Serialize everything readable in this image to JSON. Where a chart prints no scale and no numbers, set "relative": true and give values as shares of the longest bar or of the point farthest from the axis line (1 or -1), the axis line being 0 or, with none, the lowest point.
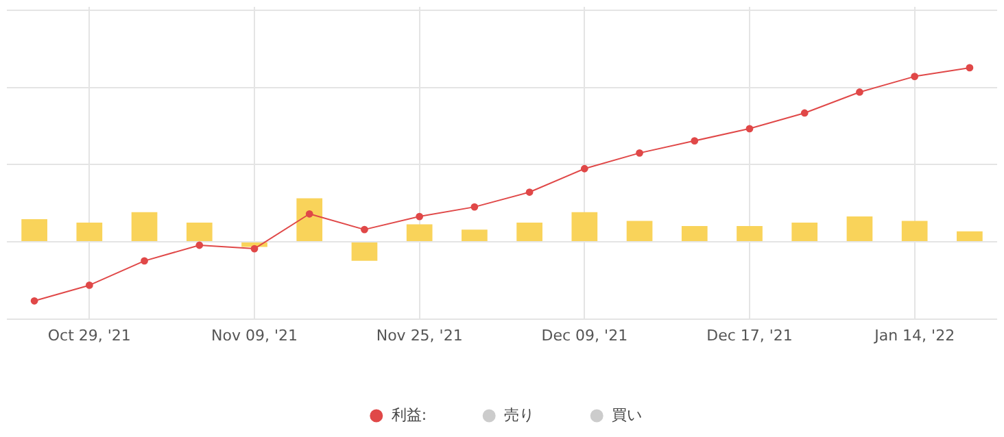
{
  "chart_data": {
    "type": "bar",
    "relative": true,
    "grid": true,
    "tick_labels": "x",
    "legend": "bottom",
    "marker": "circle",
    "categories": [
      null,
      "Oct 29, '21",
      null,
      null,
      "Nov 09, '21",
      null,
      null,
      "Nov 25, '21",
      null,
      null,
      "Dec 09, '21",
      null,
      null,
      "Dec 17, '21",
      null,
      null,
      "Jan 14, '22",
      null
    ],
    "series": [
      {
        "color": "#f9d35a",
        "values": [
          0.13,
          0.11,
          0.17,
          0.11,
          -0.03,
          0.25,
          -0.11,
          0.1,
          0.07,
          0.11,
          0.17,
          0.12,
          0.09,
          0.09,
          0.11,
          0.145,
          0.12,
          0.06
        ]
      },
      {
        "type": "line",
        "name": "利益:",
        "color": "#e04848",
        "values": [
          -0.34,
          -0.25,
          -0.11,
          -0.02,
          -0.04,
          0.16,
          0.07,
          0.145,
          0.2,
          0.285,
          0.42,
          0.51,
          0.58,
          0.65,
          0.74,
          0.86,
          0.95,
          1
        ]
      },
      {
        "type": "line",
        "name": "売り",
        "color": "#cccccc",
        "values": [
          null,
          null,
          null,
          null,
          null,
          null,
          null,
          null,
          null,
          null,
          null,
          null,
          null,
          null,
          null,
          null,
          null,
          null
        ]
      },
      {
        "type": "line",
        "name": "買い",
        "color": "#cccccc",
        "values": [
          null,
          null,
          null,
          null,
          null,
          null,
          null,
          null,
          null,
          null,
          null,
          null,
          null,
          null,
          null,
          null,
          null,
          null
        ]
      }
    ]
  }
}
